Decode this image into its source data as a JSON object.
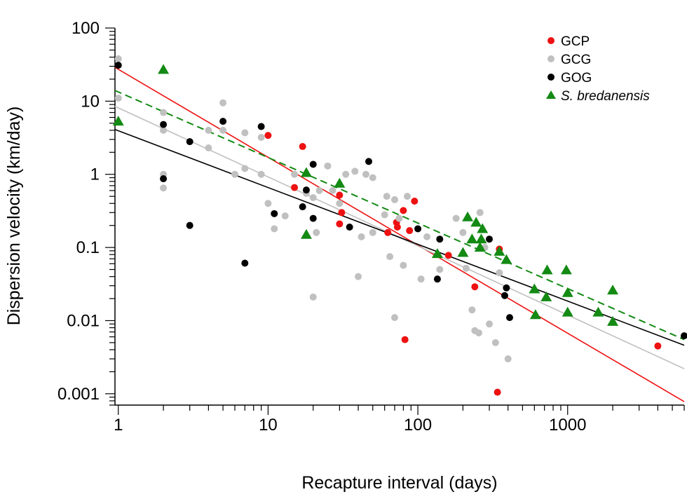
{
  "chart_data": {
    "type": "scatter",
    "xlabel": "Recapture interval (days)",
    "ylabel": "Dispersion velocity (km/day)",
    "x_scale": "log",
    "y_scale": "log",
    "xlim": [
      0.95,
      6000
    ],
    "ylim": [
      0.0007,
      100
    ],
    "x_ticks": [
      1,
      10,
      100,
      1000
    ],
    "x_tick_labels": [
      "1",
      "10",
      "100",
      "1000"
    ],
    "y_ticks": [
      0.001,
      0.01,
      0.1,
      1,
      10,
      100
    ],
    "y_tick_labels": [
      "0.001",
      "0.01",
      "0.1",
      "1",
      "10",
      "100"
    ],
    "grid": false,
    "legend_position": "top-right",
    "series": [
      {
        "name": "GCP",
        "color": "#ee1111",
        "marker": "circle",
        "points": [
          [
            10,
            3.4
          ],
          [
            15,
            0.66
          ],
          [
            17,
            2.4
          ],
          [
            30,
            0.52
          ],
          [
            30,
            0.21
          ],
          [
            31,
            0.3
          ],
          [
            63,
            0.16
          ],
          [
            72,
            0.22
          ],
          [
            73,
            0.19
          ],
          [
            80,
            0.32
          ],
          [
            82,
            0.0055
          ],
          [
            88,
            0.17
          ],
          [
            95,
            0.43
          ],
          [
            160,
            0.078
          ],
          [
            240,
            0.029
          ],
          [
            340,
            0.00105
          ],
          [
            350,
            0.095
          ],
          [
            4000,
            0.0045
          ]
        ],
        "trend": {
          "style": "solid",
          "from": [
            0.95,
            29
          ],
          "to": [
            6000,
            0.00078
          ]
        }
      },
      {
        "name": "GCG",
        "color": "#c0c0c0",
        "marker": "circle",
        "points": [
          [
            1,
            38
          ],
          [
            1,
            11
          ],
          [
            2,
            7
          ],
          [
            2,
            4
          ],
          [
            2,
            1
          ],
          [
            2,
            0.65
          ],
          [
            4,
            4
          ],
          [
            4,
            2.3
          ],
          [
            5,
            9.5
          ],
          [
            5,
            4
          ],
          [
            6,
            1
          ],
          [
            7,
            3.7
          ],
          [
            7,
            1.2
          ],
          [
            9,
            1
          ],
          [
            9,
            3.2
          ],
          [
            10,
            0.4
          ],
          [
            11,
            0.18
          ],
          [
            13,
            0.27
          ],
          [
            15,
            1
          ],
          [
            18,
            0.55
          ],
          [
            20,
            0.48
          ],
          [
            20,
            0.021
          ],
          [
            21,
            0.16
          ],
          [
            22,
            0.6
          ],
          [
            25,
            1.3
          ],
          [
            27,
            0.6
          ],
          [
            30,
            0.4
          ],
          [
            33,
            1
          ],
          [
            38,
            1.1
          ],
          [
            40,
            0.04
          ],
          [
            42,
            0.14
          ],
          [
            45,
            1
          ],
          [
            50,
            0.9
          ],
          [
            50,
            0.16
          ],
          [
            60,
            0.28
          ],
          [
            62,
            0.5
          ],
          [
            65,
            0.075
          ],
          [
            70,
            0.45
          ],
          [
            70,
            0.011
          ],
          [
            75,
            0.25
          ],
          [
            80,
            0.057
          ],
          [
            85,
            0.5
          ],
          [
            105,
            0.037
          ],
          [
            115,
            0.14
          ],
          [
            140,
            0.05
          ],
          [
            180,
            0.25
          ],
          [
            200,
            0.16
          ],
          [
            210,
            0.052
          ],
          [
            230,
            0.014
          ],
          [
            240,
            0.0073
          ],
          [
            255,
            0.0068
          ],
          [
            260,
            0.3
          ],
          [
            280,
            0.1
          ],
          [
            300,
            0.009
          ],
          [
            330,
            0.005
          ],
          [
            350,
            0.045
          ],
          [
            400,
            0.003
          ]
        ],
        "trend": {
          "style": "solid",
          "from": [
            0.95,
            8.5
          ],
          "to": [
            6000,
            0.0022
          ]
        }
      },
      {
        "name": "GOG",
        "color": "#000000",
        "marker": "circle",
        "points": [
          [
            1,
            31
          ],
          [
            2,
            4.8
          ],
          [
            2,
            0.87
          ],
          [
            3,
            2.8
          ],
          [
            3,
            0.2
          ],
          [
            5,
            5.3
          ],
          [
            7,
            0.061
          ],
          [
            9,
            4.5
          ],
          [
            11,
            0.29
          ],
          [
            17,
            0.36
          ],
          [
            18,
            0.61
          ],
          [
            20,
            1.37
          ],
          [
            20,
            0.25
          ],
          [
            35,
            0.19
          ],
          [
            47,
            1.5
          ],
          [
            100,
            0.18
          ],
          [
            135,
            0.037
          ],
          [
            140,
            0.13
          ],
          [
            300,
            0.13
          ],
          [
            380,
            0.022
          ],
          [
            390,
            0.028
          ],
          [
            410,
            0.011
          ],
          [
            6000,
            0.0062
          ]
        ],
        "trend": {
          "style": "solid",
          "from": [
            0.95,
            4.1
          ],
          "to": [
            6000,
            0.0046
          ]
        }
      },
      {
        "name": "S. bredanensis",
        "color": "#138a13",
        "marker": "triangle",
        "points": [
          [
            1,
            5.3
          ],
          [
            2,
            27
          ],
          [
            18,
            1.05
          ],
          [
            18,
            0.15
          ],
          [
            30,
            0.75
          ],
          [
            135,
            0.082
          ],
          [
            200,
            0.085
          ],
          [
            215,
            0.26
          ],
          [
            230,
            0.13
          ],
          [
            245,
            0.22
          ],
          [
            260,
            0.1
          ],
          [
            265,
            0.13
          ],
          [
            270,
            0.18
          ],
          [
            350,
            0.088
          ],
          [
            390,
            0.068
          ],
          [
            600,
            0.027
          ],
          [
            610,
            0.012
          ],
          [
            720,
            0.021
          ],
          [
            730,
            0.049
          ],
          [
            980,
            0.049
          ],
          [
            1000,
            0.024
          ],
          [
            1000,
            0.013
          ],
          [
            1600,
            0.013
          ],
          [
            2000,
            0.026
          ],
          [
            2000,
            0.0097
          ]
        ],
        "trend": {
          "style": "dashed",
          "from": [
            0.95,
            14
          ],
          "to": [
            6000,
            0.0055
          ]
        }
      }
    ]
  }
}
